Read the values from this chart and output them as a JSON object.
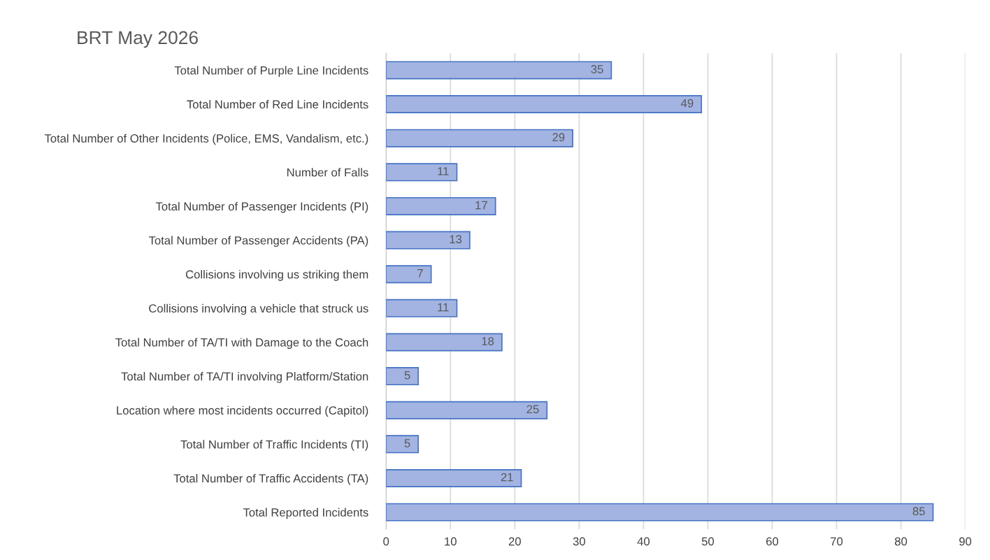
{
  "chart_data": {
    "type": "bar",
    "orientation": "horizontal",
    "title": "BRT May 2026",
    "categories": [
      "Total Number of Purple Line Incidents",
      "Total Number of Red Line Incidents",
      "Total Number of Other Incidents (Police, EMS, Vandalism, etc.)",
      "Number of Falls",
      "Total Number of Passenger Incidents (PI)",
      "Total Number of Passenger Accidents (PA)",
      "Collisions involving us striking them",
      "Collisions involving a vehicle that struck us",
      "Total Number of TA/TI with Damage to the Coach",
      "Total Number of TA/TI involving Platform/Station",
      "Location where most incidents occurred (Capitol)",
      "Total Number of Traffic Incidents (TI)",
      "Total Number of Traffic Accidents (TA)",
      "Total Reported Incidents"
    ],
    "values": [
      35,
      49,
      29,
      11,
      17,
      13,
      7,
      11,
      18,
      5,
      25,
      5,
      21,
      85
    ],
    "color": "#a3b4e2",
    "xlim": [
      0,
      90
    ],
    "xticks": [
      0,
      10,
      20,
      30,
      40,
      50,
      60,
      70,
      80,
      90
    ],
    "grid": "x",
    "data_labels": true
  }
}
